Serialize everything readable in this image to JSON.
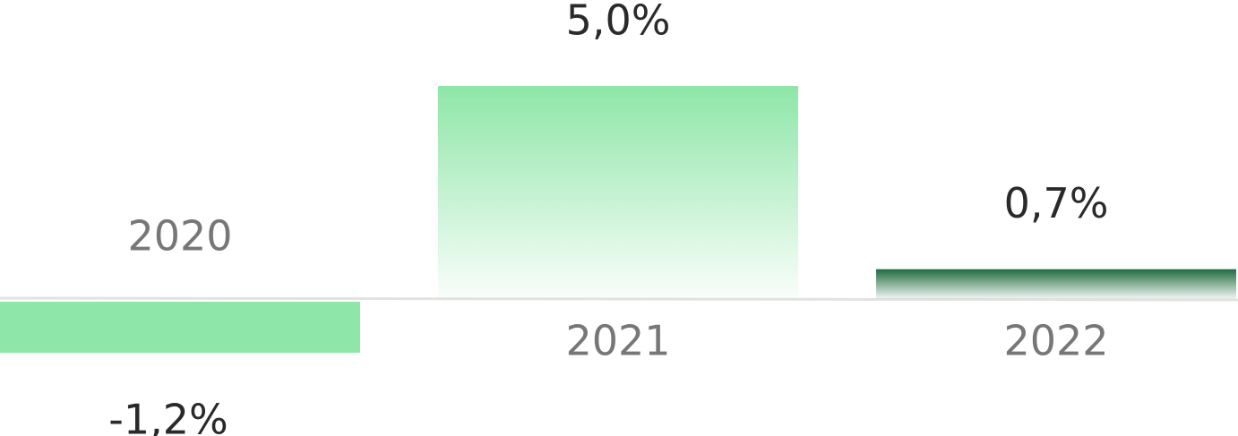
{
  "chart_data": {
    "type": "bar",
    "categories": [
      "2020",
      "2021",
      "2022"
    ],
    "values": [
      -1.2,
      5.0,
      0.7
    ],
    "value_labels": [
      "-1,2%",
      "5,0%",
      "0,7%"
    ],
    "colors": [
      "#8ee6a8",
      "#8ee6a8",
      "#1f6b3e"
    ]
  }
}
